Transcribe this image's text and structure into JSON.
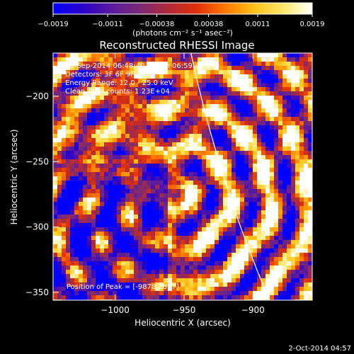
{
  "chart_data": {
    "type": "heatmap",
    "title": "Reconstructed RHESSI Image",
    "xlabel": "Heliocentric X (arcsec)",
    "ylabel": "Heliocentric Y (arcsec)",
    "xlim": [
      -1045,
      -857
    ],
    "ylim": [
      -356,
      -167
    ],
    "x_ticks": [
      {
        "v": -1000,
        "label": "−1000"
      },
      {
        "v": -950,
        "label": "−950"
      },
      {
        "v": -900,
        "label": "−900"
      }
    ],
    "y_ticks": [
      {
        "v": -200,
        "label": "−200"
      },
      {
        "v": -250,
        "label": "−250"
      },
      {
        "v": -300,
        "label": "−300"
      },
      {
        "v": -350,
        "label": "−350"
      }
    ],
    "colorbar": {
      "min": -0.0019,
      "max": 0.0019,
      "ticks": [
        {
          "v": -0.0019,
          "label": "−0.0019"
        },
        {
          "v": -0.0011,
          "label": "−0.0011"
        },
        {
          "v": -0.00038,
          "label": "−0.00038"
        },
        {
          "v": 0.00038,
          "label": "0.00038"
        },
        {
          "v": 0.0011,
          "label": "0.0011"
        },
        {
          "v": 0.0019,
          "label": "0.0019"
        }
      ],
      "unit_label": "(photons cm⁻² s⁻¹ asec⁻²)",
      "colormap": [
        "#0000ff",
        "#2a00c8",
        "#5a1aa0",
        "#7a2a78",
        "#b02a3a",
        "#e0300a",
        "#ff7a00",
        "#ffc21a",
        "#ffe86a",
        "#ffffff"
      ]
    },
    "annotations": [
      "26-Sep-2014 06:48:40.000 to 06:59:44.000",
      "Detectors: 3F 6F 9F, Att 1",
      "Energy Range: 12.0 - 25.0 keV",
      "Clean     Total counts: 1.23E+04"
    ],
    "peak_text": "Position of Peak = [-9878,2857]",
    "limb_color": "#ffffff"
  },
  "footer": {
    "date": "2-Oct-2014 04:57"
  }
}
